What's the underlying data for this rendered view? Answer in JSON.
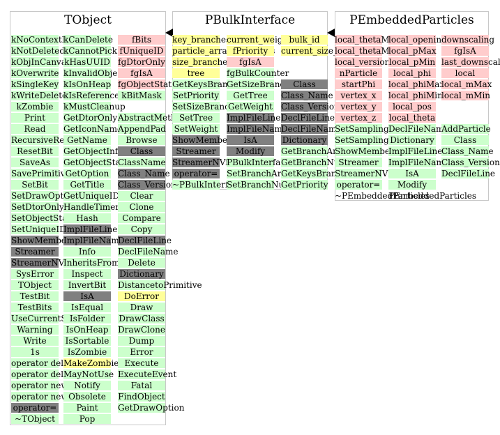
{
  "colors": {
    "member": "#ffcccc",
    "method": "#ccffcc",
    "dark": "#808080",
    "highlight": "#ffff99"
  },
  "classes": [
    {
      "title": "TObject",
      "columns": [
        {
          "cells": [
            {
              "t": "kNoContextMenu",
              "k": "method"
            },
            {
              "t": "kNotDeleted",
              "k": "method"
            },
            {
              "t": "kObjInCanvas",
              "k": "method"
            },
            {
              "t": "kOverwrite",
              "k": "method"
            },
            {
              "t": "kSingleKey",
              "k": "method"
            },
            {
              "t": "kWriteDelete",
              "k": "method"
            },
            {
              "t": "kZombie",
              "k": "method"
            },
            {
              "t": "Print",
              "k": "method"
            },
            {
              "t": "Read",
              "k": "method"
            },
            {
              "t": "RecursiveRemove",
              "k": "method"
            },
            {
              "t": "ResetBit",
              "k": "method"
            },
            {
              "t": "SaveAs",
              "k": "method"
            },
            {
              "t": "SavePrimitive",
              "k": "method"
            },
            {
              "t": "SetBit",
              "k": "method"
            },
            {
              "t": "SetDrawOption",
              "k": "method"
            },
            {
              "t": "SetDtorOnly",
              "k": "method"
            },
            {
              "t": "SetObjectStat",
              "k": "method"
            },
            {
              "t": "SetUniqueID",
              "k": "method"
            },
            {
              "t": "ShowMembers",
              "k": "dark"
            },
            {
              "t": "Streamer",
              "k": "dark"
            },
            {
              "t": "StreamerNVirtual",
              "k": "dark"
            },
            {
              "t": "SysError",
              "k": "method"
            },
            {
              "t": "TObject",
              "k": "method"
            },
            {
              "t": "TestBit",
              "k": "method"
            },
            {
              "t": "TestBits",
              "k": "method"
            },
            {
              "t": "UseCurrentStyle",
              "k": "method"
            },
            {
              "t": "Warning",
              "k": "method"
            },
            {
              "t": "Write",
              "k": "method"
            },
            {
              "t": "1s",
              "k": "method"
            },
            {
              "t": "operator delete",
              "k": "method"
            },
            {
              "t": "operator delete[]",
              "k": "method"
            },
            {
              "t": "operator new",
              "k": "method"
            },
            {
              "t": "operator new[]",
              "k": "method"
            },
            {
              "t": "operator=",
              "k": "dark"
            },
            {
              "t": "~TObject",
              "k": "method"
            }
          ]
        },
        {
          "cells": [
            {
              "t": "kCanDelete",
              "k": "method"
            },
            {
              "t": "kCannotPick",
              "k": "method"
            },
            {
              "t": "kHasUUID",
              "k": "method"
            },
            {
              "t": "kInvalidObject",
              "k": "method"
            },
            {
              "t": "kIsOnHeap",
              "k": "method"
            },
            {
              "t": "kIsReferenced",
              "k": "method"
            },
            {
              "t": "kMustCleanup",
              "k": "method"
            },
            {
              "t": "GetDtorOnly",
              "k": "method"
            },
            {
              "t": "GetIconName",
              "k": "method"
            },
            {
              "t": "GetName",
              "k": "method"
            },
            {
              "t": "GetObjectInfo",
              "k": "method"
            },
            {
              "t": "GetObjectStat",
              "k": "method"
            },
            {
              "t": "GetOption",
              "k": "method"
            },
            {
              "t": "GetTitle",
              "k": "method"
            },
            {
              "t": "GetUniqueID",
              "k": "method"
            },
            {
              "t": "HandleTimer",
              "k": "method"
            },
            {
              "t": "Hash",
              "k": "method"
            },
            {
              "t": "ImplFileLine",
              "k": "dark"
            },
            {
              "t": "ImplFileName",
              "k": "dark"
            },
            {
              "t": "Info",
              "k": "method"
            },
            {
              "t": "InheritsFrom",
              "k": "method"
            },
            {
              "t": "Inspect",
              "k": "method"
            },
            {
              "t": "InvertBit",
              "k": "method"
            },
            {
              "t": "IsA",
              "k": "dark"
            },
            {
              "t": "IsEqual",
              "k": "method"
            },
            {
              "t": "IsFolder",
              "k": "method"
            },
            {
              "t": "IsOnHeap",
              "k": "method"
            },
            {
              "t": "IsSortable",
              "k": "method"
            },
            {
              "t": "IsZombie",
              "k": "method"
            },
            {
              "t": "MakeZombie",
              "k": "yellow"
            },
            {
              "t": "MayNotUse",
              "k": "method"
            },
            {
              "t": "Notify",
              "k": "method"
            },
            {
              "t": "Obsolete",
              "k": "method"
            },
            {
              "t": "Paint",
              "k": "method"
            },
            {
              "t": "Pop",
              "k": "method"
            }
          ]
        },
        {
          "cells": [
            {
              "t": "fBits",
              "k": "member"
            },
            {
              "t": "fUniqueID",
              "k": "member"
            },
            {
              "t": "fgDtorOnly",
              "k": "member"
            },
            {
              "t": "fgIsA",
              "k": "member"
            },
            {
              "t": "fgObjectStat",
              "k": "member"
            },
            {
              "t": "kBitMask",
              "k": "method"
            },
            {
              "t": "",
              "k": "none"
            },
            {
              "t": "AbstractMethod",
              "k": "method"
            },
            {
              "t": "AppendPad",
              "k": "method"
            },
            {
              "t": "Browse",
              "k": "method"
            },
            {
              "t": "Class",
              "k": "dark"
            },
            {
              "t": "ClassName",
              "k": "method"
            },
            {
              "t": "Class_Name",
              "k": "dark"
            },
            {
              "t": "Class_Version",
              "k": "dark"
            },
            {
              "t": "Clear",
              "k": "method"
            },
            {
              "t": "Clone",
              "k": "method"
            },
            {
              "t": "Compare",
              "k": "method"
            },
            {
              "t": "Copy",
              "k": "method"
            },
            {
              "t": "DeclFileLine",
              "k": "dark"
            },
            {
              "t": "DeclFileName",
              "k": "method"
            },
            {
              "t": "Delete",
              "k": "method"
            },
            {
              "t": "Dictionary",
              "k": "dark"
            },
            {
              "t": "DistancetoPrimitive",
              "k": "method"
            },
            {
              "t": "DoError",
              "k": "yellow"
            },
            {
              "t": "Draw",
              "k": "method"
            },
            {
              "t": "DrawClass",
              "k": "method"
            },
            {
              "t": "DrawClone",
              "k": "method"
            },
            {
              "t": "Dump",
              "k": "method"
            },
            {
              "t": "Error",
              "k": "method"
            },
            {
              "t": "Execute",
              "k": "method"
            },
            {
              "t": "ExecuteEvent",
              "k": "method"
            },
            {
              "t": "Fatal",
              "k": "method"
            },
            {
              "t": "FindObject",
              "k": "method"
            },
            {
              "t": "GetDrawOption",
              "k": "method"
            }
          ]
        }
      ]
    },
    {
      "title": "PBulkInterface",
      "columns": [
        {
          "cells": [
            {
              "t": "key_branches",
              "k": "yellow"
            },
            {
              "t": "particle_array_branches",
              "k": "yellow"
            },
            {
              "t": "size_branches",
              "k": "yellow"
            },
            {
              "t": "tree",
              "k": "yellow"
            },
            {
              "t": "GetKeysBranches",
              "k": "method"
            },
            {
              "t": "SetPriority",
              "k": "method"
            },
            {
              "t": "SetSizeBranches",
              "k": "method"
            },
            {
              "t": "SetTree",
              "k": "method"
            },
            {
              "t": "SetWeight",
              "k": "method"
            },
            {
              "t": "ShowMembers",
              "k": "dark"
            },
            {
              "t": "Streamer",
              "k": "dark"
            },
            {
              "t": "StreamerNVirtual",
              "k": "dark"
            },
            {
              "t": "operator=",
              "k": "dark"
            },
            {
              "t": "~PBulkInterface",
              "k": "method"
            }
          ]
        },
        {
          "cells": [
            {
              "t": "current_weight",
              "k": "yellow"
            },
            {
              "t": "fPriority",
              "k": "yellow"
            },
            {
              "t": "fgIsA",
              "k": "member"
            },
            {
              "t": "fgBulkCounter",
              "k": "method"
            },
            {
              "t": "GetSizeBranches",
              "k": "method"
            },
            {
              "t": "GetTree",
              "k": "method"
            },
            {
              "t": "GetWeight",
              "k": "method"
            },
            {
              "t": "ImplFileLine",
              "k": "dark"
            },
            {
              "t": "ImplFileName",
              "k": "dark"
            },
            {
              "t": "IsA",
              "k": "dark"
            },
            {
              "t": "Modify",
              "k": "dark"
            },
            {
              "t": "PBulkInterface",
              "k": "method"
            },
            {
              "t": "SetBranchArray",
              "k": "method"
            },
            {
              "t": "SetBranchNum",
              "k": "method"
            }
          ]
        },
        {
          "cells": [
            {
              "t": "bulk_id",
              "k": "yellow"
            },
            {
              "t": "current_size_branches",
              "k": "yellow"
            },
            {
              "t": "",
              "k": "none"
            },
            {
              "t": "",
              "k": "none"
            },
            {
              "t": "Class",
              "k": "dark"
            },
            {
              "t": "Class_Name",
              "k": "dark"
            },
            {
              "t": "Class_Version",
              "k": "dark"
            },
            {
              "t": "DeclFileLine",
              "k": "dark"
            },
            {
              "t": "DeclFileName",
              "k": "dark"
            },
            {
              "t": "Dictionary",
              "k": "dark"
            },
            {
              "t": "GetBranchArray",
              "k": "method"
            },
            {
              "t": "GetBranchNum",
              "k": "method"
            },
            {
              "t": "GetKeysBranches",
              "k": "method"
            },
            {
              "t": "GetPriority",
              "k": "method"
            }
          ]
        }
      ]
    },
    {
      "title": "PEmbeddedParticles",
      "columns": [
        {
          "cells": [
            {
              "t": "local_thetaMax",
              "k": "member"
            },
            {
              "t": "local_thetaMin",
              "k": "member"
            },
            {
              "t": "local_version",
              "k": "member"
            },
            {
              "t": "nParticle",
              "k": "member"
            },
            {
              "t": "startPhi",
              "k": "member"
            },
            {
              "t": "vertex_x",
              "k": "member"
            },
            {
              "t": "vertex_y",
              "k": "member"
            },
            {
              "t": "vertex_z",
              "k": "member"
            },
            {
              "t": "SetSampling",
              "k": "method"
            },
            {
              "t": "SetSamplingSector",
              "k": "method"
            },
            {
              "t": "ShowMembers",
              "k": "method"
            },
            {
              "t": "Streamer",
              "k": "method"
            },
            {
              "t": "StreamerNVirtual",
              "k": "method"
            },
            {
              "t": "operator=",
              "k": "method"
            },
            {
              "t": "~PEmbeddedParticles",
              "k": "none"
            }
          ]
        },
        {
          "cells": [
            {
              "t": "local_openingAngle",
              "k": "member"
            },
            {
              "t": "local_pMax",
              "k": "member"
            },
            {
              "t": "local_pMin",
              "k": "member"
            },
            {
              "t": "local_phi",
              "k": "member"
            },
            {
              "t": "local_phiMax",
              "k": "member"
            },
            {
              "t": "local_phiMin",
              "k": "member"
            },
            {
              "t": "local_pos",
              "k": "member"
            },
            {
              "t": "local_theta",
              "k": "member"
            },
            {
              "t": "DeclFileName",
              "k": "method"
            },
            {
              "t": "Dictionary",
              "k": "method"
            },
            {
              "t": "ImplFileLine",
              "k": "method"
            },
            {
              "t": "ImplFileName",
              "k": "method"
            },
            {
              "t": "IsA",
              "k": "method"
            },
            {
              "t": "Modify",
              "k": "method"
            },
            {
              "t": "PEmbeddedParticles",
              "k": "none"
            }
          ]
        },
        {
          "cells": [
            {
              "t": "downscaling",
              "k": "member"
            },
            {
              "t": "fgIsA",
              "k": "member"
            },
            {
              "t": "last_downscaling",
              "k": "member"
            },
            {
              "t": "local",
              "k": "member"
            },
            {
              "t": "local_mMax",
              "k": "member"
            },
            {
              "t": "local_mMin",
              "k": "member"
            },
            {
              "t": "",
              "k": "none"
            },
            {
              "t": "",
              "k": "none"
            },
            {
              "t": "AddParticle",
              "k": "method"
            },
            {
              "t": "Class",
              "k": "method"
            },
            {
              "t": "Class_Name",
              "k": "method"
            },
            {
              "t": "Class_Version",
              "k": "method"
            },
            {
              "t": "DeclFileLine",
              "k": "method"
            }
          ]
        }
      ]
    }
  ]
}
